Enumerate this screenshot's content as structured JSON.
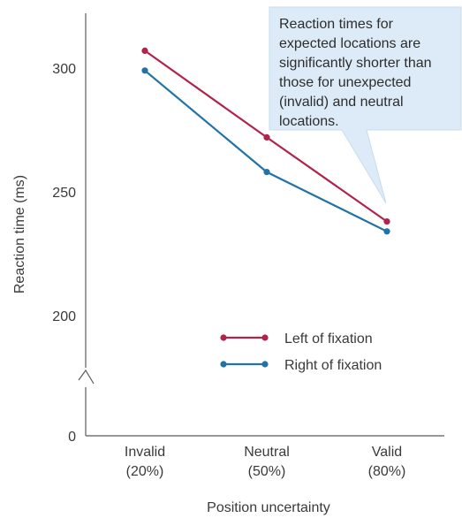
{
  "chart_data": {
    "type": "line",
    "categories": [
      "Invalid\n(20%)",
      "Neutral\n(50%)",
      "Valid\n(80%)"
    ],
    "xlabel": "Position uncertainty",
    "ylabel": "Reaction time (ms)",
    "yticks": [
      0,
      200,
      250,
      300
    ],
    "ylim": [
      0,
      320
    ],
    "legend_position": "lower-right",
    "series": [
      {
        "name": "Left of fixation",
        "values": [
          307,
          272,
          238
        ],
        "color": "#b2234c"
      },
      {
        "name": "Right of fixation",
        "values": [
          299,
          258,
          234
        ],
        "color": "#1f73a8"
      }
    ],
    "annotation": "Reaction times for expected locations are significantly shorter than those for unexpected (invalid) and neutral locations.",
    "annotation_lines": [
      "Reaction times for",
      "expected locations are",
      "significantly shorter than",
      "those for unexpected",
      "(invalid) and neutral",
      "locations."
    ],
    "callout_fill": "#dcebf7",
    "callout_stroke": "#c7dced"
  }
}
